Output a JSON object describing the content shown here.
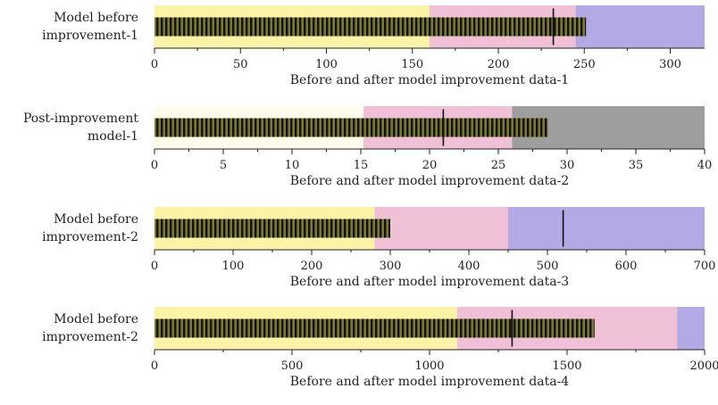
{
  "chart_data": [
    {
      "type": "bullet",
      "label": [
        "Model before",
        "improvement-1"
      ],
      "xlabel": "Before and after model improvement data-1",
      "xlim": [
        0,
        320
      ],
      "ticks": [
        0,
        50,
        100,
        150,
        200,
        250,
        300
      ],
      "ranges": [
        {
          "from": 0,
          "to": 160,
          "color": "#fbf3a6"
        },
        {
          "from": 160,
          "to": 245,
          "color": "#efc0d6"
        },
        {
          "from": 245,
          "to": 320,
          "color": "#b3a9e4"
        }
      ],
      "value": 251,
      "target": 232
    },
    {
      "type": "bullet",
      "label": [
        "Post-improvement",
        "model-1"
      ],
      "xlabel": "Before and after model improvement data-2",
      "xlim": [
        0,
        40
      ],
      "ticks": [
        0,
        5,
        10,
        15,
        20,
        25,
        30,
        35,
        40
      ],
      "ranges": [
        {
          "from": 0,
          "to": 15.2,
          "color": "#fefcea"
        },
        {
          "from": 15.2,
          "to": 26,
          "color": "#efc0d6"
        },
        {
          "from": 26,
          "to": 40,
          "color": "#9f9e9e"
        }
      ],
      "value": 28.6,
      "target": 21
    },
    {
      "type": "bullet",
      "label": [
        "Model before",
        "improvement-2"
      ],
      "xlabel": "Before and after model improvement data-3",
      "xlim": [
        0,
        700
      ],
      "ticks": [
        0,
        100,
        200,
        300,
        400,
        500,
        600,
        700
      ],
      "ranges": [
        {
          "from": 0,
          "to": 280,
          "color": "#fbf3a6"
        },
        {
          "from": 280,
          "to": 450,
          "color": "#efc0d6"
        },
        {
          "from": 450,
          "to": 700,
          "color": "#b3a9e4"
        }
      ],
      "value": 300,
      "target": 520
    },
    {
      "type": "bullet",
      "label": [
        "Model before",
        "improvement-2"
      ],
      "xlabel": "Before and after model improvement data-4",
      "xlim": [
        0,
        2000
      ],
      "ticks": [
        0,
        500,
        1000,
        1500,
        2000
      ],
      "ranges": [
        {
          "from": 0,
          "to": 1100,
          "color": "#fbf3a6"
        },
        {
          "from": 1100,
          "to": 1900,
          "color": "#efc0d6"
        },
        {
          "from": 1900,
          "to": 2000,
          "color": "#b3a9e4"
        }
      ],
      "value": 1600,
      "target": 1300
    }
  ],
  "colors": {
    "bar_fill": "#7c7a2a",
    "bar_hatch": "#111111",
    "target_line": "#111111"
  }
}
